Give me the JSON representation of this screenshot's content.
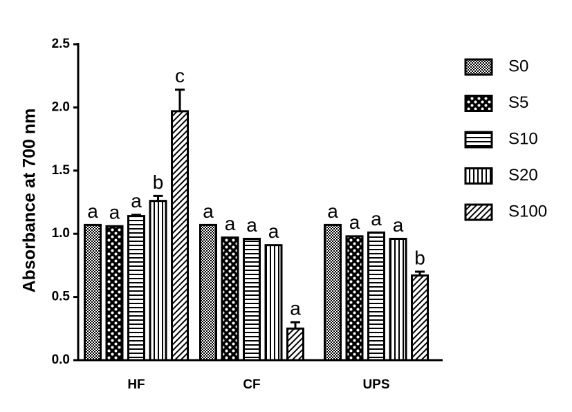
{
  "chart_data": {
    "type": "bar",
    "y_label": "Absorbance at 700 nm",
    "categories": [
      "HF",
      "CF",
      "UPS"
    ],
    "series": [
      {
        "name": "S0",
        "color": "#000000",
        "pattern": "dots",
        "values": [
          1.07,
          1.07,
          1.07
        ],
        "errors": [
          null,
          null,
          null
        ],
        "value_labels": [
          "a",
          "a",
          "a"
        ]
      },
      {
        "name": "S5",
        "color": "#000000",
        "pattern": "checker",
        "values": [
          1.06,
          0.97,
          0.98
        ],
        "errors": [
          null,
          null,
          null
        ],
        "value_labels": [
          "a",
          "a",
          "a"
        ]
      },
      {
        "name": "S10",
        "color": "#000000",
        "pattern": "horizontal",
        "values": [
          1.14,
          0.96,
          1.01
        ],
        "errors": [
          0.01,
          null,
          null
        ],
        "value_labels": [
          "a",
          "a",
          "a"
        ]
      },
      {
        "name": "S20",
        "color": "#000000",
        "pattern": "vertical",
        "values": [
          1.26,
          0.91,
          0.96
        ],
        "errors": [
          0.04,
          null,
          null
        ],
        "value_labels": [
          "b",
          "a",
          "a"
        ]
      },
      {
        "name": "S100",
        "color": "#000000",
        "pattern": "diagonal",
        "values": [
          1.97,
          0.25,
          0.67
        ],
        "errors": [
          0.17,
          0.05,
          0.03
        ],
        "value_labels": [
          "c",
          "a",
          "b"
        ]
      }
    ],
    "ylim": [
      0,
      2.5
    ],
    "yticks": [
      {
        "value": 0,
        "label": "0.0"
      },
      0.5,
      {
        "value": 1,
        "label": "1.0"
      },
      1.5,
      {
        "value": 2,
        "label": "2.0"
      },
      2.5
    ],
    "legend": "right"
  }
}
